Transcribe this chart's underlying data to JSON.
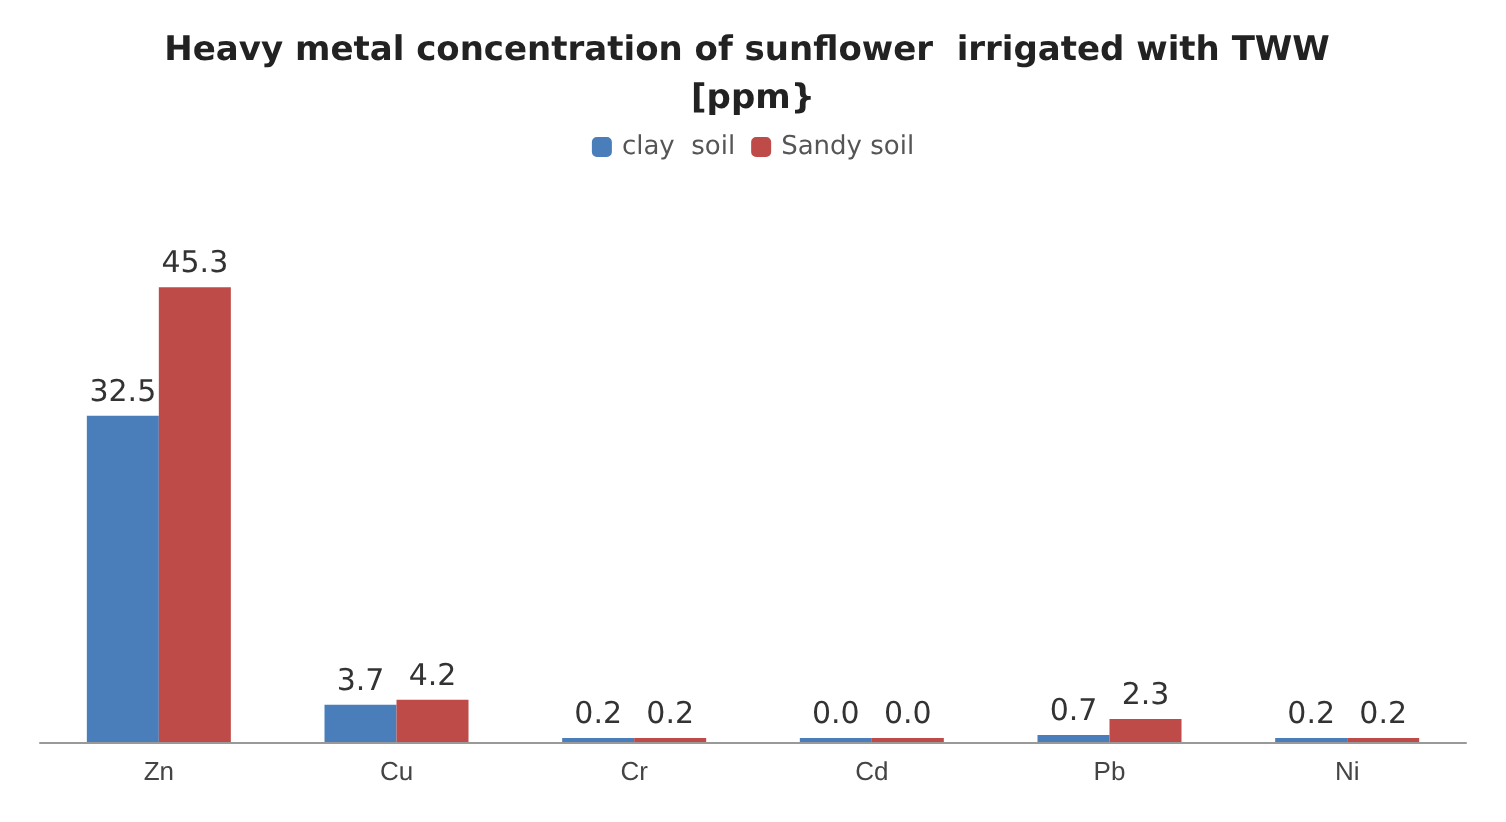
{
  "chart_data": {
    "type": "bar",
    "title": "Heavy metal concentration of sunflower  irrigated with TWW [ppm}",
    "categories": [
      "Zn",
      "Cu",
      "Cr",
      "Cd",
      "Pb",
      "Ni"
    ],
    "series": [
      {
        "name": "clay  soil",
        "color": "#4a7ebb",
        "values": [
          32.5,
          3.7,
          0.2,
          0.0,
          0.7,
          0.2
        ],
        "value_labels": [
          "32.5",
          "3.7",
          "0.2",
          "0.0",
          "0.7",
          "0.2"
        ]
      },
      {
        "name": "Sandy soil",
        "color": "#be4b48",
        "values": [
          45.3,
          4.2,
          0.2,
          0.0,
          2.3,
          0.2
        ],
        "value_labels": [
          "45.3",
          "4.2",
          "0.2",
          "0.0",
          "2.3",
          "0.2"
        ]
      }
    ],
    "legend": "top",
    "grid": false
  }
}
